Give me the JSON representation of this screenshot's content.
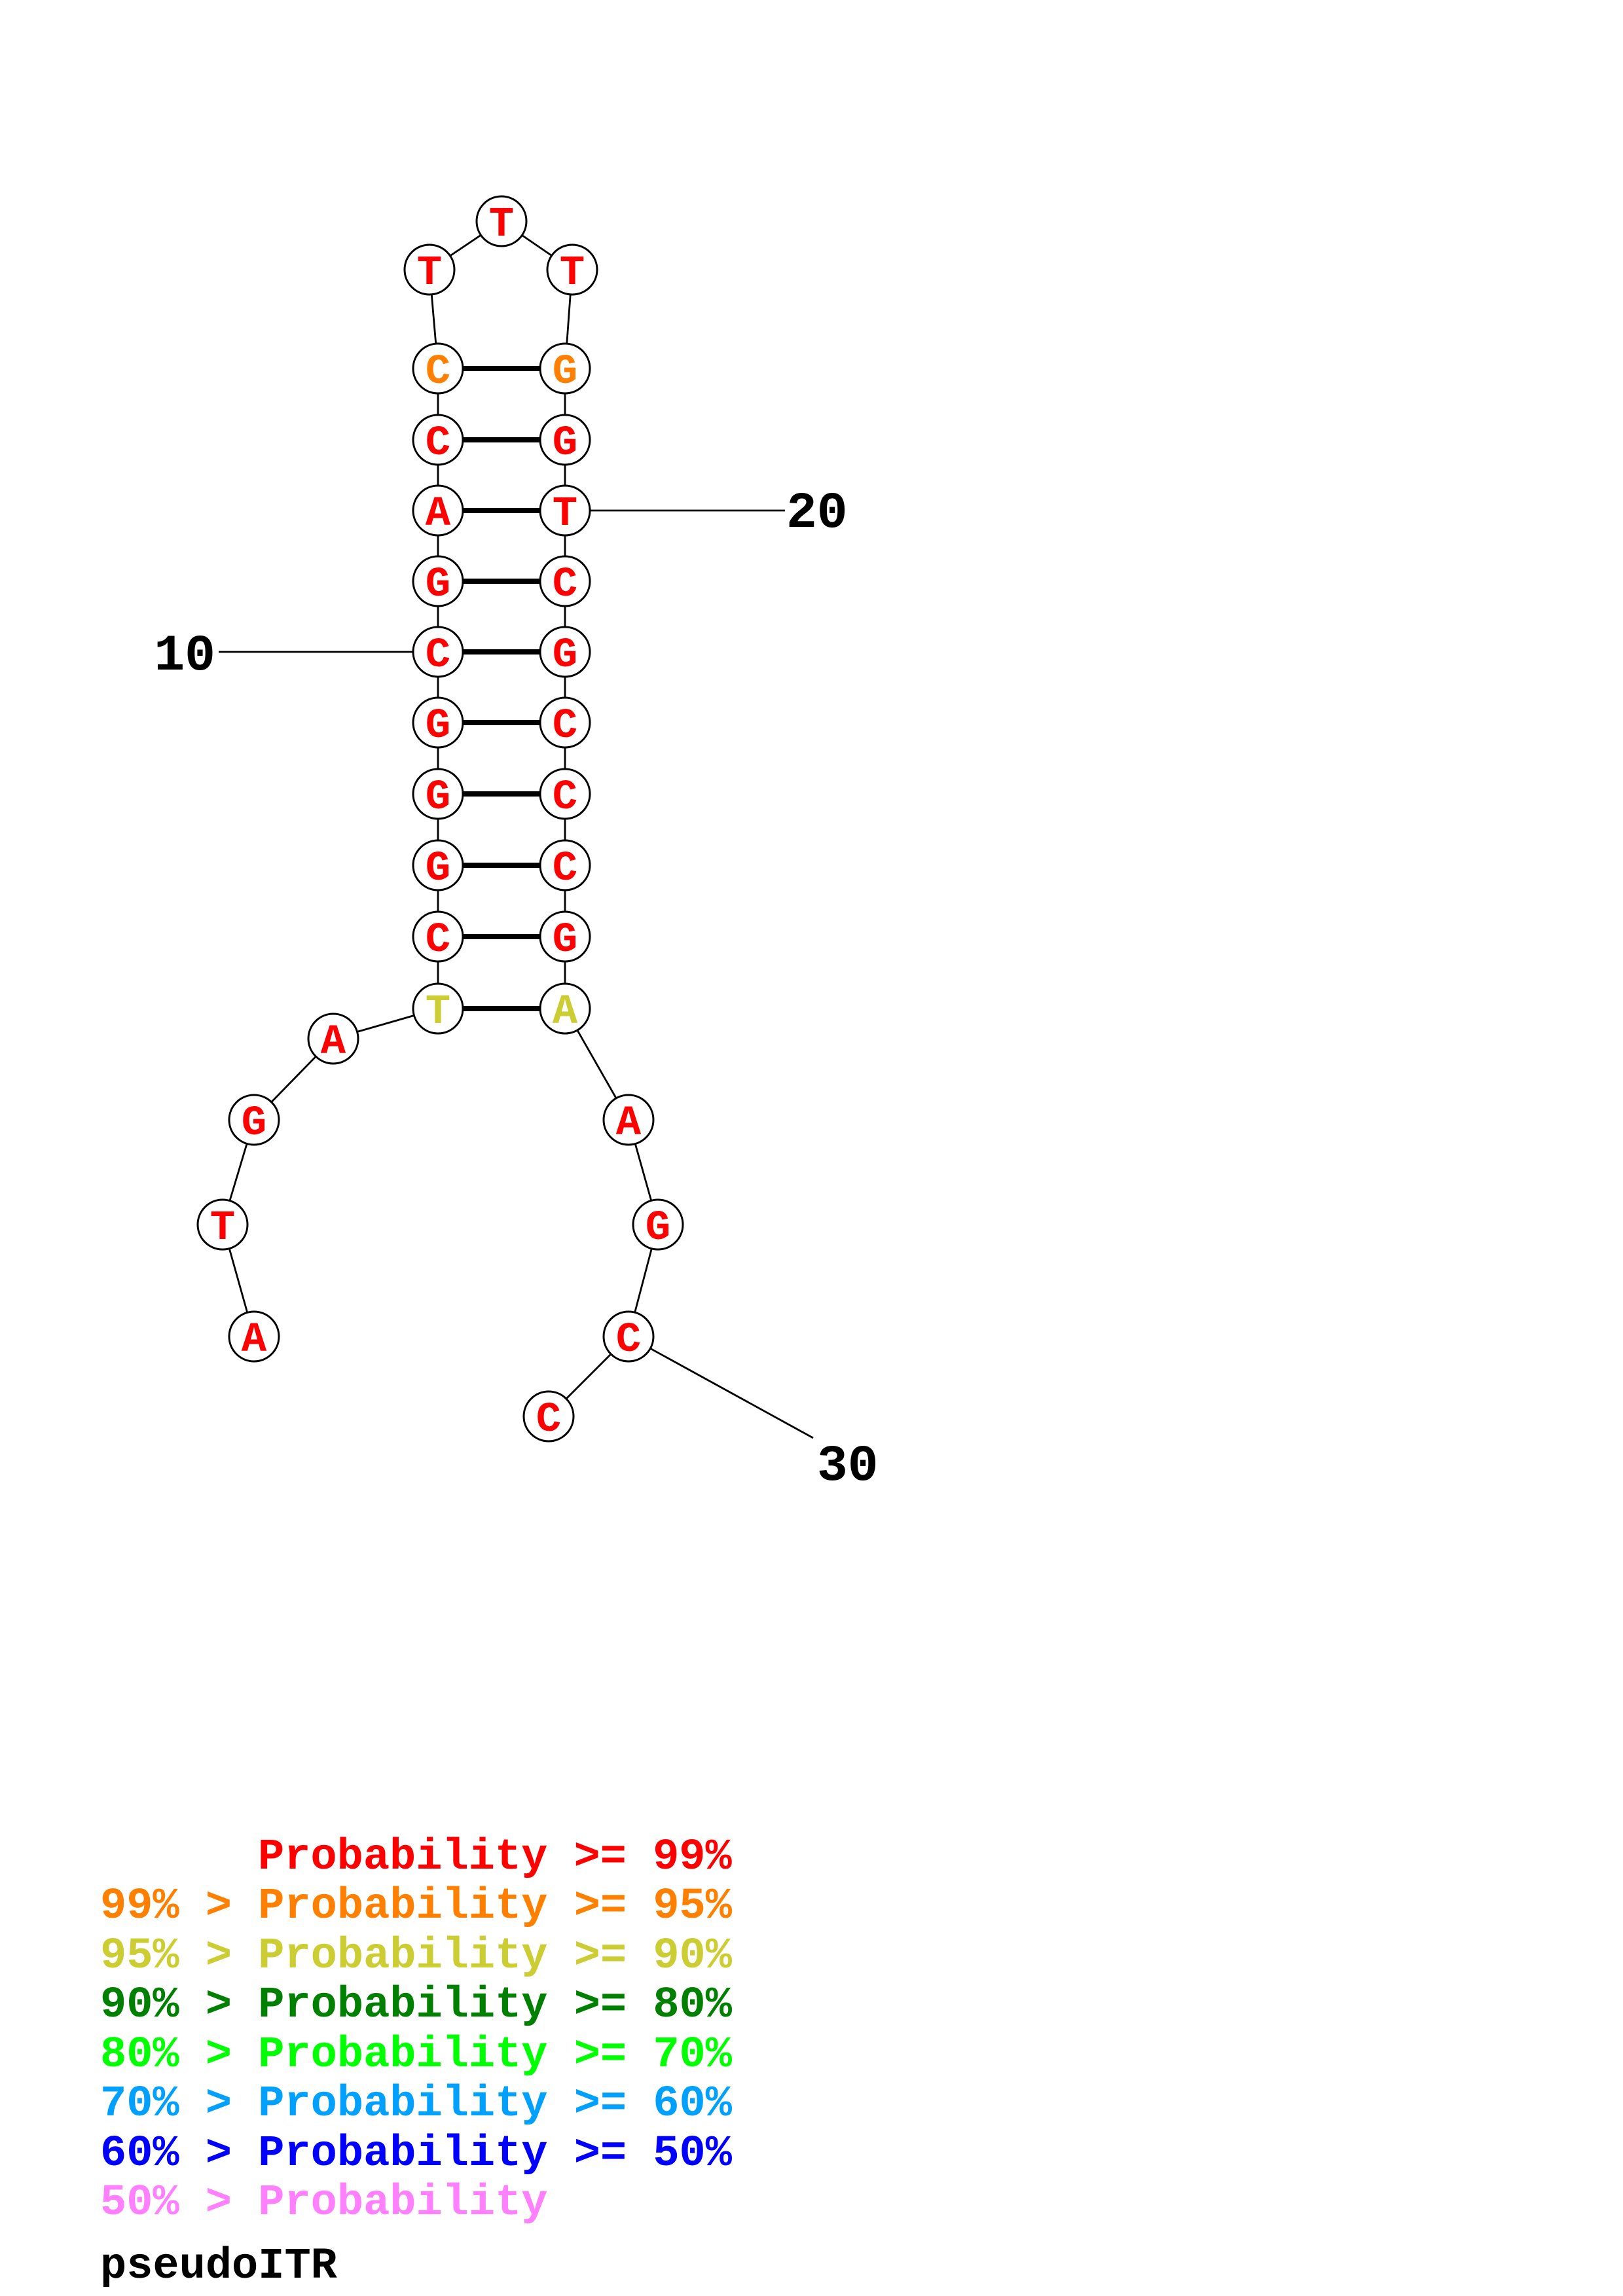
{
  "diagram": {
    "nucleotides": [
      {
        "base": "A",
        "tier": 0
      },
      {
        "base": "T",
        "tier": 0
      },
      {
        "base": "G",
        "tier": 0
      },
      {
        "base": "A",
        "tier": 0
      },
      {
        "base": "T",
        "tier": 2
      },
      {
        "base": "C",
        "tier": 0
      },
      {
        "base": "G",
        "tier": 0
      },
      {
        "base": "G",
        "tier": 0
      },
      {
        "base": "G",
        "tier": 0
      },
      {
        "base": "C",
        "tier": 0
      },
      {
        "base": "G",
        "tier": 0
      },
      {
        "base": "A",
        "tier": 0
      },
      {
        "base": "C",
        "tier": 0
      },
      {
        "base": "C",
        "tier": 1
      },
      {
        "base": "T",
        "tier": 0
      },
      {
        "base": "T",
        "tier": 0
      },
      {
        "base": "T",
        "tier": 0
      },
      {
        "base": "G",
        "tier": 1
      },
      {
        "base": "G",
        "tier": 0
      },
      {
        "base": "T",
        "tier": 0
      },
      {
        "base": "C",
        "tier": 0
      },
      {
        "base": "G",
        "tier": 0
      },
      {
        "base": "C",
        "tier": 0
      },
      {
        "base": "C",
        "tier": 0
      },
      {
        "base": "C",
        "tier": 0
      },
      {
        "base": "G",
        "tier": 0
      },
      {
        "base": "A",
        "tier": 2
      },
      {
        "base": "A",
        "tier": 0
      },
      {
        "base": "G",
        "tier": 0
      },
      {
        "base": "C",
        "tier": 0
      },
      {
        "base": "C",
        "tier": 0
      }
    ],
    "pairs": [
      [
        5,
        27
      ],
      [
        6,
        26
      ],
      [
        7,
        25
      ],
      [
        8,
        24
      ],
      [
        9,
        23
      ],
      [
        10,
        22
      ],
      [
        11,
        21
      ],
      [
        12,
        20
      ],
      [
        13,
        19
      ],
      [
        14,
        18
      ]
    ],
    "position_labels": [
      {
        "position": 10,
        "text": "10"
      },
      {
        "position": 20,
        "text": "20"
      },
      {
        "position": 30,
        "text": "30"
      }
    ],
    "line_color": "#000000"
  },
  "legend": {
    "items": [
      {
        "text": "Probability >= 99%",
        "color": "#FF0000"
      },
      {
        "text": "99% > Probability >= 95%",
        "color": "#FF8000"
      },
      {
        "text": "95% > Probability >= 90%",
        "color": "#CCCC33"
      },
      {
        "text": "90% > Probability >= 80%",
        "color": "#008000"
      },
      {
        "text": "80% > Probability >= 70%",
        "color": "#00FF00"
      },
      {
        "text": "70% > Probability >= 60%",
        "color": "#00A0FF"
      },
      {
        "text": "60% > Probability >= 50%",
        "color": "#0000FF"
      },
      {
        "text": "50% > Probability",
        "color": "#FF80FF"
      }
    ]
  },
  "title": "pseudoITR"
}
